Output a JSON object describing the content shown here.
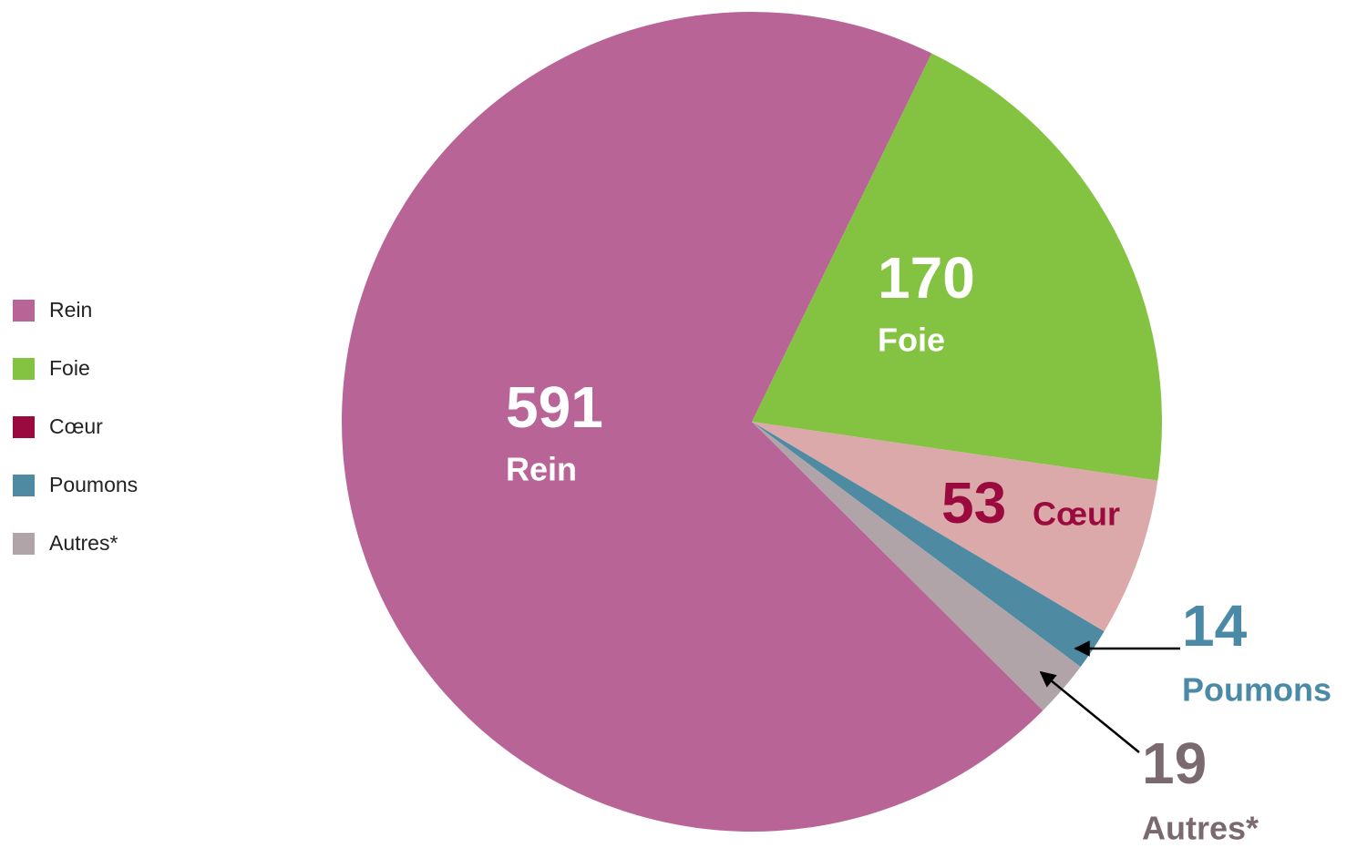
{
  "chart_data": {
    "type": "pie",
    "categories": [
      "Rein",
      "Foie",
      "Cœur",
      "Poumons",
      "Autres*"
    ],
    "values": [
      591,
      170,
      53,
      14,
      19
    ],
    "colors": [
      "#b86496",
      "#84c341",
      "#dba9a9",
      "#4f8aa3",
      "#b0a4a8"
    ],
    "legend_colors": [
      "#b86496",
      "#84c341",
      "#9b0a3e",
      "#4f8aa3",
      "#b0a4a8"
    ],
    "label_colors": [
      "#ffffff",
      "#ffffff",
      "#9b0a3e",
      "#4a8aa6",
      "#7a6a70"
    ]
  }
}
